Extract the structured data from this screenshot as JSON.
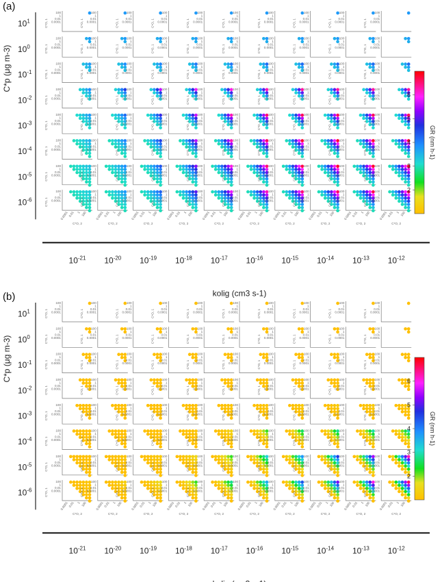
{
  "figure": {
    "panels": [
      "(a)",
      "(b)"
    ],
    "ylabel": "C*p (μg m-3)",
    "xlabel": "kolig (cm3 s-1)",
    "cp_ticks": [
      {
        "base": "10",
        "exp": "1"
      },
      {
        "base": "10",
        "exp": "0"
      },
      {
        "base": "10",
        "exp": "-1"
      },
      {
        "base": "10",
        "exp": "-2"
      },
      {
        "base": "10",
        "exp": "-3"
      },
      {
        "base": "10",
        "exp": "-4"
      },
      {
        "base": "10",
        "exp": "-5"
      },
      {
        "base": "10",
        "exp": "-6"
      }
    ],
    "kolig_ticks": [
      {
        "base": "10",
        "exp": "-21"
      },
      {
        "base": "10",
        "exp": "-20"
      },
      {
        "base": "10",
        "exp": "-19"
      },
      {
        "base": "10",
        "exp": "-18"
      },
      {
        "base": "10",
        "exp": "-17"
      },
      {
        "base": "10",
        "exp": "-16"
      },
      {
        "base": "10",
        "exp": "-15"
      },
      {
        "base": "10",
        "exp": "-14"
      },
      {
        "base": "10",
        "exp": "-13"
      },
      {
        "base": "10",
        "exp": "-12"
      }
    ],
    "inner_ylabel": "C*O, 1",
    "inner_xlabel": "C*O, 2",
    "inner_ticks": [
      "100",
      "1",
      "0.01",
      "0.0001"
    ],
    "colorbar": {
      "label": "GR (nm h-1)",
      "ticks": [
        "2",
        "3",
        "4",
        "5",
        "6"
      ],
      "range": [
        1,
        7
      ],
      "colors": [
        "#ffc000",
        "#10e020",
        "#20dcd0",
        "#1f90ff",
        "#2040e0",
        "#a000ff",
        "#ff20ff",
        "#ff0000"
      ]
    }
  },
  "chart_data": [
    {
      "type": "heatmap",
      "panel": "(a)",
      "description_grid": "8 rows (C*p) x 10 columns (kolig); each cell is a triangular heatmap of C*O,1 vs C*O,2",
      "rows_cp": [
        "1e1",
        "1e0",
        "1e-1",
        "1e-2",
        "1e-3",
        "1e-4",
        "1e-5",
        "1e-6"
      ],
      "cols_kolig": [
        "1e-21",
        "1e-20",
        "1e-19",
        "1e-18",
        "1e-17",
        "1e-16",
        "1e-15",
        "1e-14",
        "1e-13",
        "1e-12"
      ],
      "triangle_size_by_row": [
        1,
        2,
        3,
        4,
        5,
        6,
        7,
        7
      ],
      "gr_min_by_row": [
        3.8,
        3.6,
        3.4,
        3.2,
        3.1,
        3.0,
        3.0,
        3.0
      ],
      "gr_max_by_row_col": [
        [
          3.8,
          3.8,
          3.8,
          3.8,
          3.8,
          3.8,
          3.8,
          3.8,
          3.8,
          3.8
        ],
        [
          3.8,
          3.8,
          3.8,
          3.8,
          3.8,
          3.8,
          3.8,
          3.8,
          3.8,
          3.8
        ],
        [
          3.8,
          3.9,
          4.0,
          4.1,
          4.1,
          4.2,
          4.2,
          4.2,
          4.2,
          4.2
        ],
        [
          3.9,
          4.6,
          5.6,
          5.8,
          6.0,
          6.2,
          6.3,
          6.3,
          6.3,
          6.3
        ],
        [
          3.8,
          4.2,
          4.8,
          5.6,
          6.2,
          6.5,
          6.6,
          6.6,
          6.6,
          6.6
        ],
        [
          3.6,
          4.0,
          4.6,
          5.5,
          6.2,
          6.6,
          6.8,
          6.8,
          6.8,
          6.8
        ],
        [
          3.4,
          3.9,
          4.4,
          5.2,
          6.0,
          6.5,
          6.7,
          6.8,
          6.8,
          6.8
        ],
        [
          3.3,
          3.8,
          4.3,
          5.0,
          5.8,
          6.2,
          6.5,
          6.6,
          6.7,
          6.7
        ]
      ]
    },
    {
      "type": "heatmap",
      "panel": "(b)",
      "description_grid": "8 rows (C*p) x 10 columns (kolig); each cell is a triangular heatmap of C*O,1 vs C*O,2",
      "rows_cp": [
        "1e1",
        "1e0",
        "1e-1",
        "1e-2",
        "1e-3",
        "1e-4",
        "1e-5",
        "1e-6"
      ],
      "cols_kolig": [
        "1e-21",
        "1e-20",
        "1e-19",
        "1e-18",
        "1e-17",
        "1e-16",
        "1e-15",
        "1e-14",
        "1e-13",
        "1e-12"
      ],
      "triangle_size_by_row": [
        1,
        2,
        3,
        4,
        5,
        6,
        7,
        7
      ],
      "gr_min_by_row": [
        1.0,
        1.0,
        1.0,
        1.0,
        1.0,
        1.0,
        1.0,
        1.0
      ],
      "gr_max_by_row_col": [
        [
          1.0,
          1.0,
          1.0,
          1.0,
          1.0,
          1.0,
          1.0,
          1.0,
          1.0,
          1.0
        ],
        [
          1.0,
          1.0,
          1.0,
          1.0,
          1.0,
          1.0,
          1.0,
          1.0,
          1.0,
          1.0
        ],
        [
          1.0,
          1.0,
          1.0,
          1.0,
          1.0,
          1.0,
          1.0,
          1.0,
          1.0,
          1.0
        ],
        [
          1.0,
          1.0,
          1.0,
          1.0,
          1.0,
          1.0,
          1.0,
          1.0,
          1.0,
          1.0
        ],
        [
          1.0,
          1.0,
          1.0,
          1.0,
          1.1,
          1.1,
          1.2,
          1.2,
          1.2,
          1.2
        ],
        [
          1.0,
          1.0,
          1.0,
          1.1,
          1.4,
          2.2,
          2.6,
          2.8,
          2.9,
          3.0
        ],
        [
          1.0,
          1.1,
          1.2,
          1.5,
          2.2,
          3.2,
          3.8,
          4.6,
          5.4,
          6.2
        ],
        [
          1.1,
          1.3,
          1.6,
          2.2,
          2.8,
          3.6,
          4.4,
          5.2,
          6.0,
          6.6
        ]
      ]
    }
  ]
}
